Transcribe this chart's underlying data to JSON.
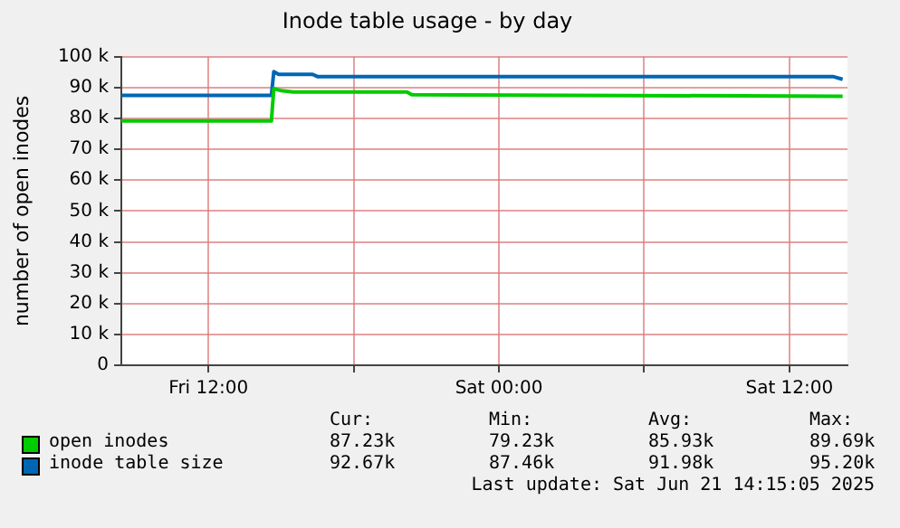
{
  "chart_data": {
    "type": "line",
    "title": "Inode table usage - by day",
    "ylabel": "number of open inodes",
    "xlim": [
      "2025-06-20T08:24",
      "2025-06-21T14:24"
    ],
    "xticks": [
      {
        "value": "2025-06-20T12:00",
        "label": "Fri 12:00"
      },
      {
        "value": "2025-06-20T18:00",
        "label": null
      },
      {
        "value": "2025-06-21T00:00",
        "label": "Sat 00:00"
      },
      {
        "value": "2025-06-21T06:00",
        "label": null
      },
      {
        "value": "2025-06-21T12:00",
        "label": "Sat 12:00"
      }
    ],
    "ylim": [
      0,
      100000
    ],
    "yticks": [
      0,
      {
        "value": 10000,
        "label": "10 k"
      },
      {
        "value": 20000,
        "label": "20 k"
      },
      {
        "value": 30000,
        "label": "30 k"
      },
      {
        "value": 40000,
        "label": "40 k"
      },
      {
        "value": 50000,
        "label": "50 k"
      },
      {
        "value": 60000,
        "label": "60 k"
      },
      {
        "value": 70000,
        "label": "70 k"
      },
      {
        "value": 80000,
        "label": "80 k"
      },
      {
        "value": 90000,
        "label": "90 k"
      },
      {
        "value": 100000,
        "label": "100 k"
      }
    ],
    "grid": true,
    "legend": "bottom",
    "marker": "none",
    "line_style": "solid",
    "series": [
      {
        "name": "open inodes",
        "color": "#00cc00",
        "x": [
          "2025-06-20T08:24",
          "2025-06-20T14:36",
          "2025-06-20T14:42",
          "2025-06-20T15:00",
          "2025-06-20T15:30",
          "2025-06-20T20:12",
          "2025-06-20T20:24",
          "2025-06-21T14:12"
        ],
        "values": [
          79200,
          79200,
          89700,
          89000,
          88600,
          88600,
          87700,
          87200
        ]
      },
      {
        "name": "inode table size",
        "color": "#0066b3",
        "x": [
          "2025-06-20T08:24",
          "2025-06-20T14:36",
          "2025-06-20T14:42",
          "2025-06-20T14:54",
          "2025-06-20T16:18",
          "2025-06-20T16:30",
          "2025-06-21T13:48",
          "2025-06-21T14:12"
        ],
        "values": [
          87500,
          87500,
          95200,
          94300,
          94300,
          93600,
          93600,
          92700
        ]
      }
    ],
    "annotations": [
      "Cur:",
      "Min:",
      "Avg:",
      "Max:",
      "87.23k",
      "79.23k",
      "85.93k",
      "89.69k",
      "92.67k",
      "87.46k",
      "91.98k",
      "95.20k",
      "Last update: Sat Jun 21 14:15:05 2025"
    ]
  }
}
